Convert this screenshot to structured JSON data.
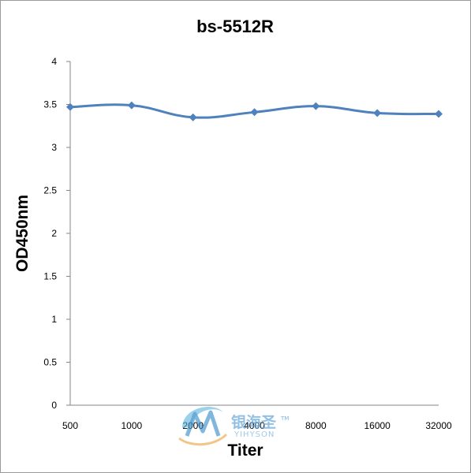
{
  "chart_data": {
    "type": "line",
    "title": "bs-5512R",
    "xlabel": "Titer",
    "ylabel": "OD450nm",
    "categories": [
      "500",
      "1000",
      "2000",
      "4000",
      "8000",
      "16000",
      "32000"
    ],
    "series": [
      {
        "values": [
          3.47,
          3.49,
          3.35,
          3.41,
          3.48,
          3.4,
          3.39
        ]
      }
    ],
    "ylim": [
      0,
      4
    ],
    "yticks": [
      "0",
      "0.5",
      "1",
      "1.5",
      "2",
      "2.5",
      "3",
      "3.5",
      "4"
    ],
    "grid": false,
    "legend": "none",
    "series_color": "#4f81bd",
    "axis_color": "#868686"
  },
  "watermark": {
    "text": "银海圣",
    "subtext": "YIHYSON",
    "tm": "TM"
  }
}
